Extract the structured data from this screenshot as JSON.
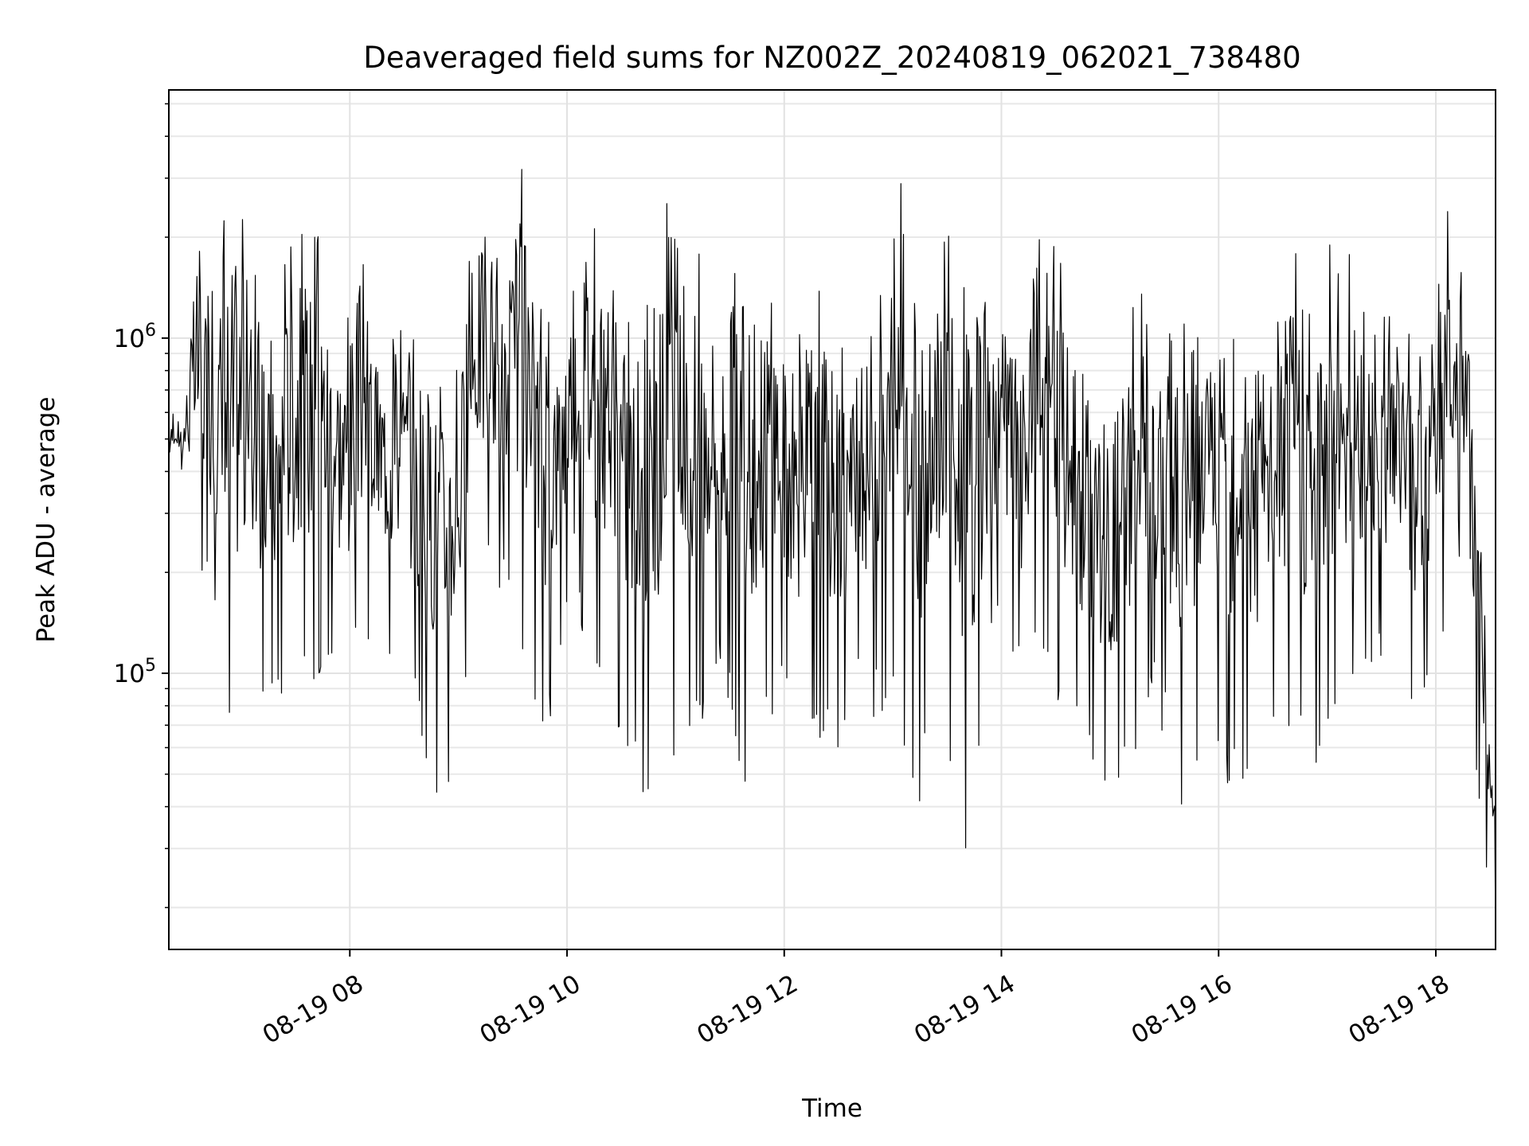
{
  "chart_data": {
    "type": "line",
    "title": "Deaveraged field sums for NZ002Z_20240819_062021_738480",
    "xlabel": "Time",
    "ylabel": "Peak ADU - average",
    "yscale": "log",
    "ylim": [
      15000,
      5500000
    ],
    "xlim": [
      "2024-08-19T06:20",
      "2024-08-19T18:33"
    ],
    "grid": true,
    "legend": "none",
    "line_color": "#000000",
    "x_ticks": [
      {
        "value": "2024-08-19T08:00",
        "label": "08-19 08"
      },
      {
        "value": "2024-08-19T10:00",
        "label": "08-19 10"
      },
      {
        "value": "2024-08-19T12:00",
        "label": "08-19 12"
      },
      {
        "value": "2024-08-19T14:00",
        "label": "08-19 14"
      },
      {
        "value": "2024-08-19T16:00",
        "label": "08-19 16"
      },
      {
        "value": "2024-08-19T18:00",
        "label": "08-19 18"
      }
    ],
    "y_ticks": [
      {
        "value": 100000,
        "base": "10",
        "exp": "5"
      },
      {
        "value": 1000000,
        "base": "10",
        "exp": "6"
      }
    ],
    "x": [
      "2024-08-19T06:20",
      "2024-08-19T06:28",
      "2024-08-19T06:36",
      "2024-08-19T06:44",
      "2024-08-19T06:50",
      "2024-08-19T06:56",
      "2024-08-19T07:04",
      "2024-08-19T07:12",
      "2024-08-19T07:18",
      "2024-08-19T07:26",
      "2024-08-19T07:34",
      "2024-08-19T07:42",
      "2024-08-19T07:50",
      "2024-08-19T07:58",
      "2024-08-19T08:06",
      "2024-08-19T08:14",
      "2024-08-19T08:22",
      "2024-08-19T08:30",
      "2024-08-19T08:38",
      "2024-08-19T08:46",
      "2024-08-19T08:52",
      "2024-08-19T08:58",
      "2024-08-19T09:04",
      "2024-08-19T09:10",
      "2024-08-19T09:18",
      "2024-08-19T09:26",
      "2024-08-19T09:34",
      "2024-08-19T09:40",
      "2024-08-19T09:48",
      "2024-08-19T09:56",
      "2024-08-19T10:04",
      "2024-08-19T10:10",
      "2024-08-19T10:18",
      "2024-08-19T10:26",
      "2024-08-19T10:34",
      "2024-08-19T10:42",
      "2024-08-19T10:50",
      "2024-08-19T10:58",
      "2024-08-19T11:04",
      "2024-08-19T11:12",
      "2024-08-19T11:20",
      "2024-08-19T11:28",
      "2024-08-19T11:36",
      "2024-08-19T11:44",
      "2024-08-19T11:52",
      "2024-08-19T12:00",
      "2024-08-19T12:08",
      "2024-08-19T12:16",
      "2024-08-19T12:24",
      "2024-08-19T12:32",
      "2024-08-19T12:40",
      "2024-08-19T12:48",
      "2024-08-19T12:56",
      "2024-08-19T13:04",
      "2024-08-19T13:12",
      "2024-08-19T13:20",
      "2024-08-19T13:28",
      "2024-08-19T13:36",
      "2024-08-19T13:44",
      "2024-08-19T13:50",
      "2024-08-19T13:56",
      "2024-08-19T14:04",
      "2024-08-19T14:12",
      "2024-08-19T14:20",
      "2024-08-19T14:28",
      "2024-08-19T14:36",
      "2024-08-19T14:44",
      "2024-08-19T14:52",
      "2024-08-19T15:00",
      "2024-08-19T15:08",
      "2024-08-19T15:16",
      "2024-08-19T15:24",
      "2024-08-19T15:32",
      "2024-08-19T15:40",
      "2024-08-19T15:48",
      "2024-08-19T15:56",
      "2024-08-19T16:04",
      "2024-08-19T16:12",
      "2024-08-19T16:20",
      "2024-08-19T16:28",
      "2024-08-19T16:36",
      "2024-08-19T16:44",
      "2024-08-19T16:52",
      "2024-08-19T17:00",
      "2024-08-19T17:08",
      "2024-08-19T17:16",
      "2024-08-19T17:24",
      "2024-08-19T17:32",
      "2024-08-19T17:40",
      "2024-08-19T17:48",
      "2024-08-19T17:56",
      "2024-08-19T18:04",
      "2024-08-19T18:10",
      "2024-08-19T18:16",
      "2024-08-19T18:22",
      "2024-08-19T18:26",
      "2024-08-19T18:28",
      "2024-08-19T18:30",
      "2024-08-19T18:33"
    ],
    "series": [
      {
        "color": "#000000",
        "max": [
          650000,
          600000,
          2500000,
          1500000,
          2200000,
          2900000,
          2200000,
          1100000,
          1000000,
          2000000,
          2200000,
          2100000,
          1500000,
          1200000,
          2100000,
          1100000,
          1000000,
          1100000,
          1000000,
          1000000,
          800000,
          900000,
          1500000,
          2700000,
          2400000,
          1600000,
          3700000,
          2000000,
          1300000,
          1100000,
          1900000,
          3000000,
          1800000,
          1700000,
          1300000,
          1200000,
          1600000,
          4200000,
          1400000,
          2000000,
          1500000,
          1600000,
          2100000,
          1300000,
          2100000,
          1200000,
          1000000,
          1700000,
          1300000,
          1000000,
          1000000,
          1300000,
          1400000,
          3100000,
          1600000,
          1300000,
          2300000,
          1800000,
          1600000,
          2000000,
          1100000,
          1500000,
          1100000,
          2400000,
          2100000,
          1500000,
          1000000,
          1000000,
          800000,
          1300000,
          1900000,
          1000000,
          1000000,
          1300000,
          1000000,
          1500000,
          1200000,
          1700000,
          1800000,
          1000000,
          1800000,
          2000000,
          1300000,
          1800000,
          2900000,
          1200000,
          1500000,
          1200000,
          1500000,
          1200000,
          1300000,
          2900000,
          2000000,
          1600000,
          500000,
          400000,
          95000,
          60000,
          50000
        ],
        "min": [
          400000,
          380000,
          160000,
          150000,
          60000,
          55000,
          70000,
          70000,
          75000,
          80000,
          80000,
          90000,
          100000,
          80000,
          110000,
          120000,
          110000,
          110000,
          65000,
          45000,
          37000,
          55000,
          70000,
          190000,
          180000,
          160000,
          120000,
          60000,
          60000,
          110000,
          200000,
          110000,
          100000,
          70000,
          55000,
          40000,
          50000,
          48000,
          60000,
          60000,
          95000,
          90000,
          40000,
          60000,
          70000,
          85000,
          60000,
          55000,
          58000,
          60000,
          80000,
          75000,
          70000,
          75000,
          33000,
          55000,
          80000,
          30000,
          25000,
          65000,
          150000,
          110000,
          80000,
          120000,
          75000,
          70000,
          55000,
          50000,
          32000,
          45000,
          45000,
          80000,
          60000,
          28000,
          55000,
          70000,
          45000,
          50000,
          32000,
          70000,
          65000,
          60000,
          42000,
          70000,
          70000,
          80000,
          100000,
          90000,
          110000,
          60000,
          80000,
          120000,
          230000,
          200000,
          50000,
          22000,
          24000,
          25000,
          16000
        ]
      }
    ]
  }
}
